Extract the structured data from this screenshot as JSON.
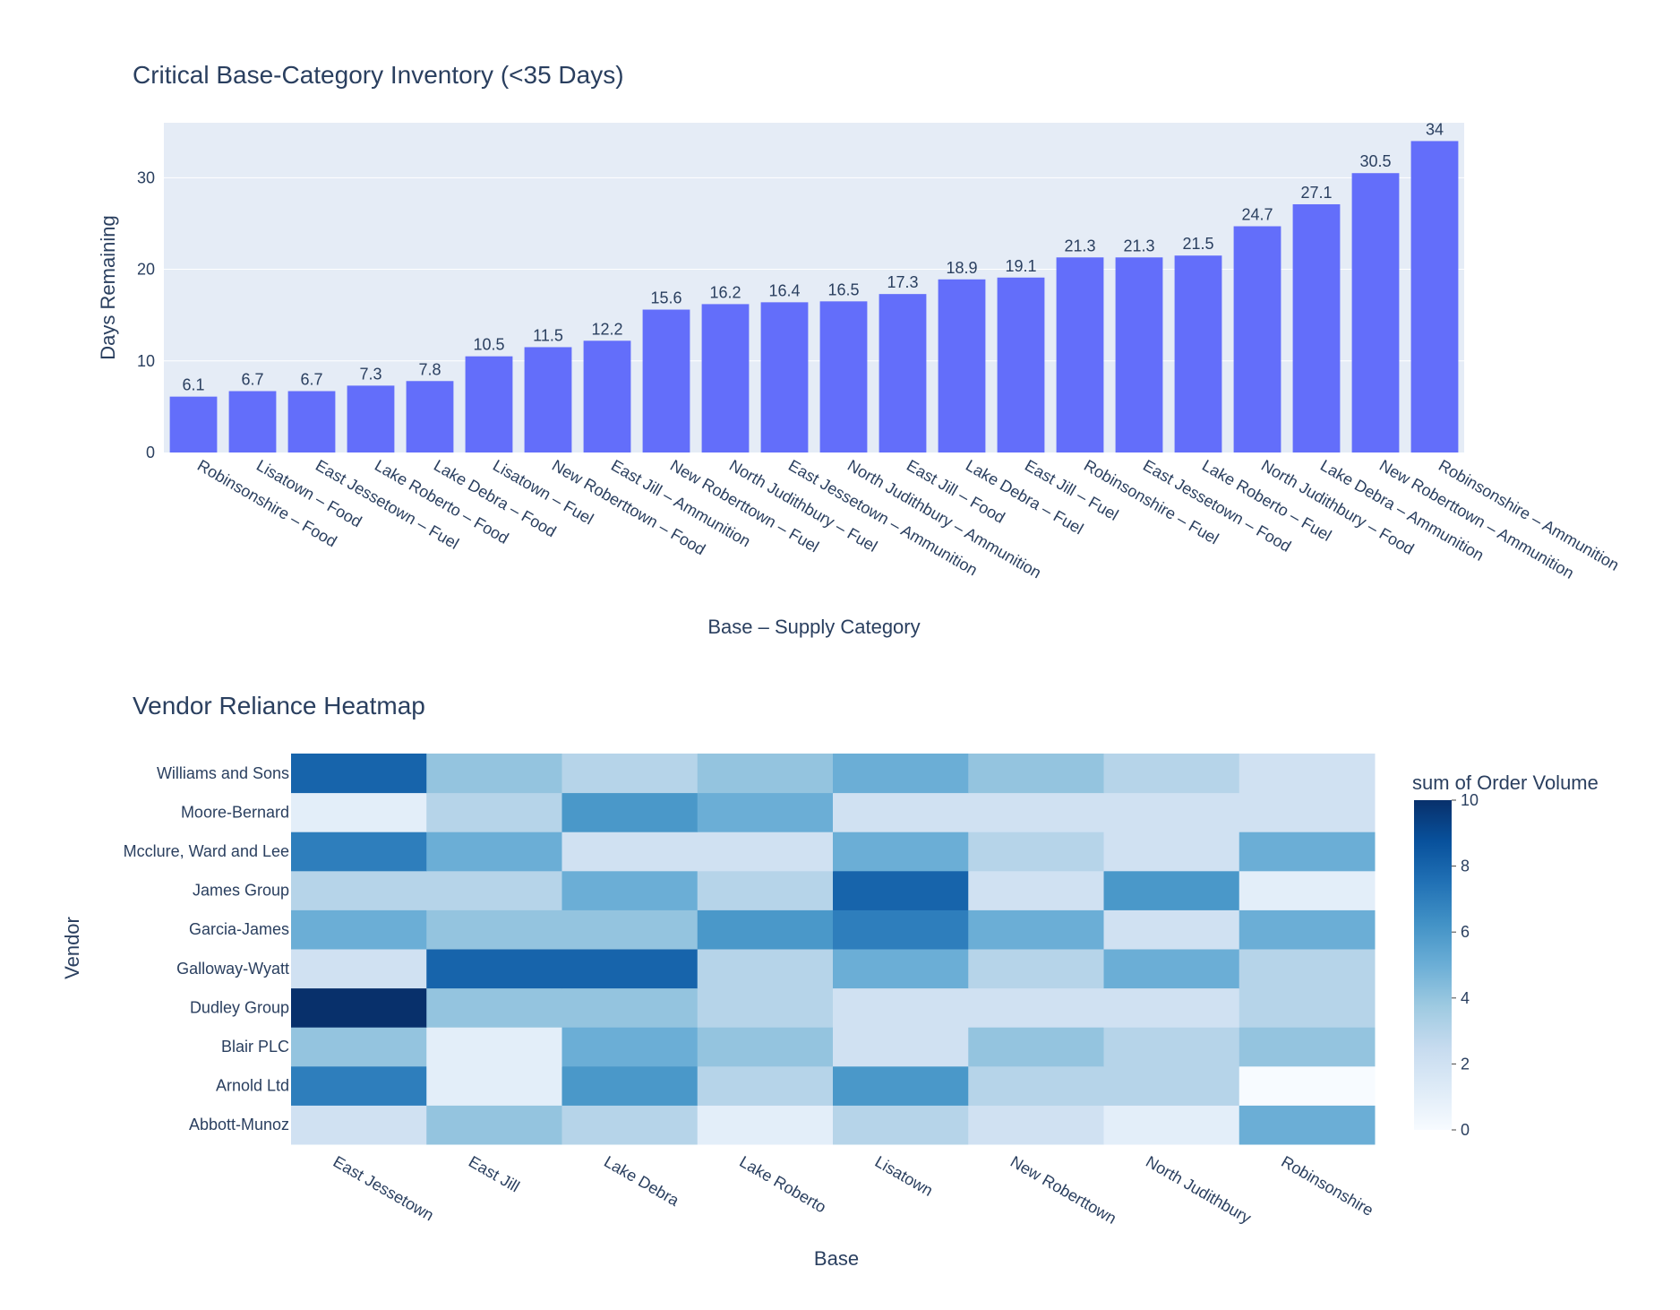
{
  "colors": {
    "bar": "#636efa",
    "plot_bg": "#e5ecf6",
    "grid": "#ffffff",
    "text": "#2a3f5f",
    "colorscale": [
      "#f7fbff",
      "#deebf7",
      "#c6dbef",
      "#9ecae1",
      "#6baed6",
      "#4292c6",
      "#2171b5",
      "#08519c",
      "#08306b"
    ]
  },
  "chart_data": [
    {
      "type": "bar",
      "title": "Critical Base-Category Inventory (<35 Days)",
      "xlabel": "Base – Supply Category",
      "ylabel": "Days Remaining",
      "ylim": [
        0,
        36
      ],
      "yticks": [
        0,
        10,
        20,
        30
      ],
      "grid": true,
      "categories": [
        "Robinsonshire – Food",
        "Lisatown – Food",
        "East Jessetown – Fuel",
        "Lake Roberto – Food",
        "Lake Debra – Food",
        "Lisatown – Fuel",
        "New Roberttown – Food",
        "East Jill – Ammunition",
        "New Roberttown – Fuel",
        "North Judithbury – Fuel",
        "East Jessetown – Ammunition",
        "North Judithbury – Ammunition",
        "East Jill – Food",
        "Lake Debra – Fuel",
        "East Jill – Fuel",
        "Robinsonshire – Fuel",
        "East Jessetown – Food",
        "Lake Roberto – Fuel",
        "North Judithbury – Food",
        "Lake Debra – Ammunition",
        "New Roberttown – Ammunition",
        "Robinsonshire – Ammunition"
      ],
      "values": [
        6.1,
        6.7,
        6.7,
        7.3,
        7.8,
        10.5,
        11.5,
        12.2,
        15.6,
        16.2,
        16.4,
        16.5,
        17.3,
        18.9,
        19.1,
        21.3,
        21.3,
        21.5,
        24.7,
        27.1,
        30.5,
        34
      ]
    },
    {
      "type": "heatmap",
      "title": "Vendor Reliance Heatmap",
      "xlabel": "Base",
      "ylabel": "Vendor",
      "colorbar_title": "sum of Order Volume",
      "zlim": [
        0,
        10
      ],
      "colorbar_ticks": [
        0,
        2,
        4,
        6,
        8,
        10
      ],
      "x": [
        "East Jessetown",
        "East Jill",
        "Lake Debra",
        "Lake Roberto",
        "Lisatown",
        "New Roberttown",
        "North Judithbury",
        "Robinsonshire"
      ],
      "y": [
        "Abbott-Munoz",
        "Arnold Ltd",
        "Blair PLC",
        "Dudley Group",
        "Galloway-Wyatt",
        "Garcia-James",
        "James Group",
        "Mcclure, Ward and Lee",
        "Moore-Bernard",
        "Williams and Sons"
      ],
      "z": [
        [
          2,
          4,
          3,
          1,
          3,
          2,
          1,
          5
        ],
        [
          7,
          1,
          6,
          3,
          6,
          3,
          3,
          0
        ],
        [
          4,
          1,
          5,
          4,
          2,
          4,
          3,
          4
        ],
        [
          10,
          4,
          4,
          3,
          2,
          2,
          2,
          3
        ],
        [
          2,
          8,
          8,
          3,
          5,
          3,
          5,
          3
        ],
        [
          5,
          4,
          4,
          6,
          7,
          5,
          2,
          5
        ],
        [
          3,
          3,
          5,
          3,
          8,
          2,
          6,
          1
        ],
        [
          7,
          5,
          2,
          2,
          5,
          3,
          2,
          5
        ],
        [
          1,
          3,
          6,
          5,
          2,
          2,
          2,
          2
        ],
        [
          8,
          4,
          3,
          4,
          5,
          4,
          3,
          2
        ]
      ]
    }
  ]
}
